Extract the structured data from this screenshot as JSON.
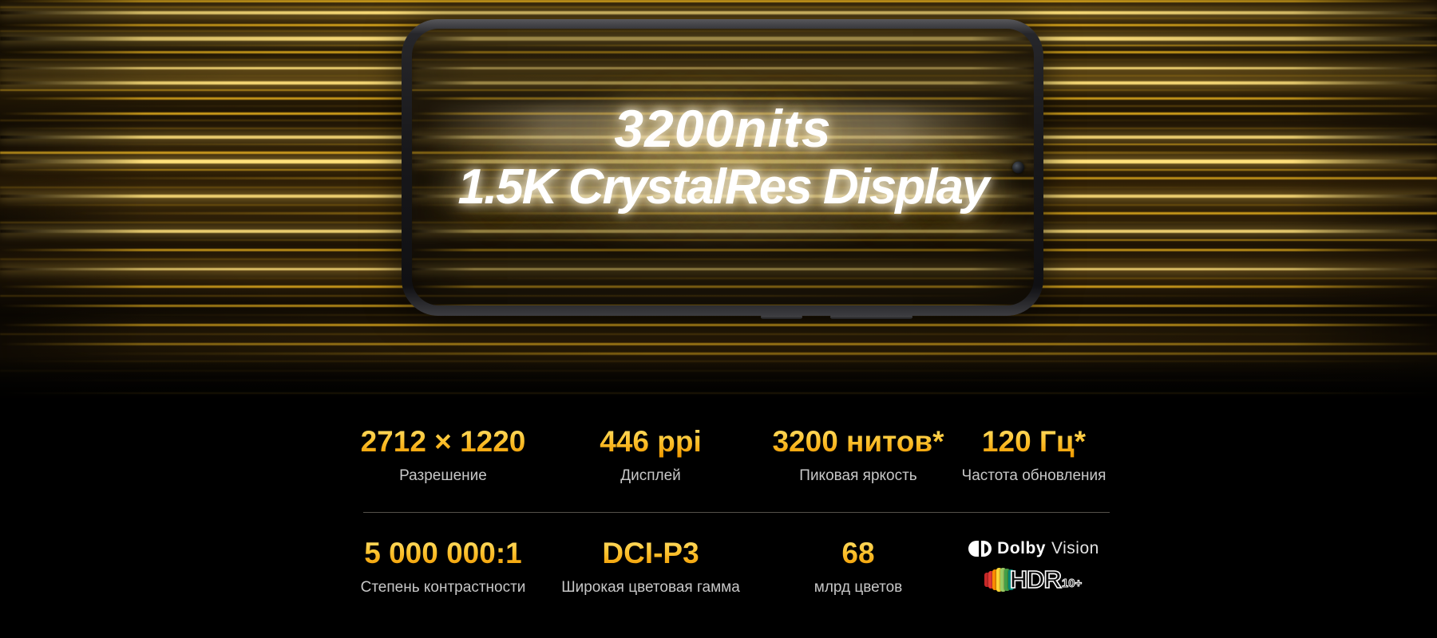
{
  "hero": {
    "headline_line1": "3200nits",
    "headline_line2": "1.5K CrystalRes Display"
  },
  "specs": {
    "row1": [
      {
        "value": "2712 × 1220",
        "label": "Разрешение"
      },
      {
        "value": "446 ppi",
        "label": "Дисплей"
      },
      {
        "value": "3200 нитов*",
        "label": "Пиковая яркость"
      },
      {
        "value": "120 Гц*",
        "label": "Частота обновления"
      }
    ],
    "row2": [
      {
        "value": "5 000 000:1",
        "label": "Степень контрастности"
      },
      {
        "value": "DCI-P3",
        "label": "Широкая цветовая гамма"
      },
      {
        "value": "68",
        "label": "млрд цветов"
      }
    ],
    "logos": {
      "dolby": {
        "brand": "Dolby",
        "product": "Vision"
      },
      "hdr": {
        "word": "HDR",
        "suffix": "10+"
      }
    }
  },
  "colors": {
    "background": "#000000",
    "streak_gold_bright": "#ffe07a",
    "streak_gold": "#edb51f",
    "value_gradient_top": "#ffdd66",
    "value_gradient_bottom": "#f09b02",
    "label_gray": "#c7c7c7",
    "divider": "#55504a",
    "headline_white": "#ffffff",
    "dolby_white": "#ffffff",
    "hdr_bars": [
      "#c62828",
      "#e53935",
      "#fb8c00",
      "#fdd835",
      "#9ccc65",
      "#43a047",
      "#00897b"
    ]
  }
}
